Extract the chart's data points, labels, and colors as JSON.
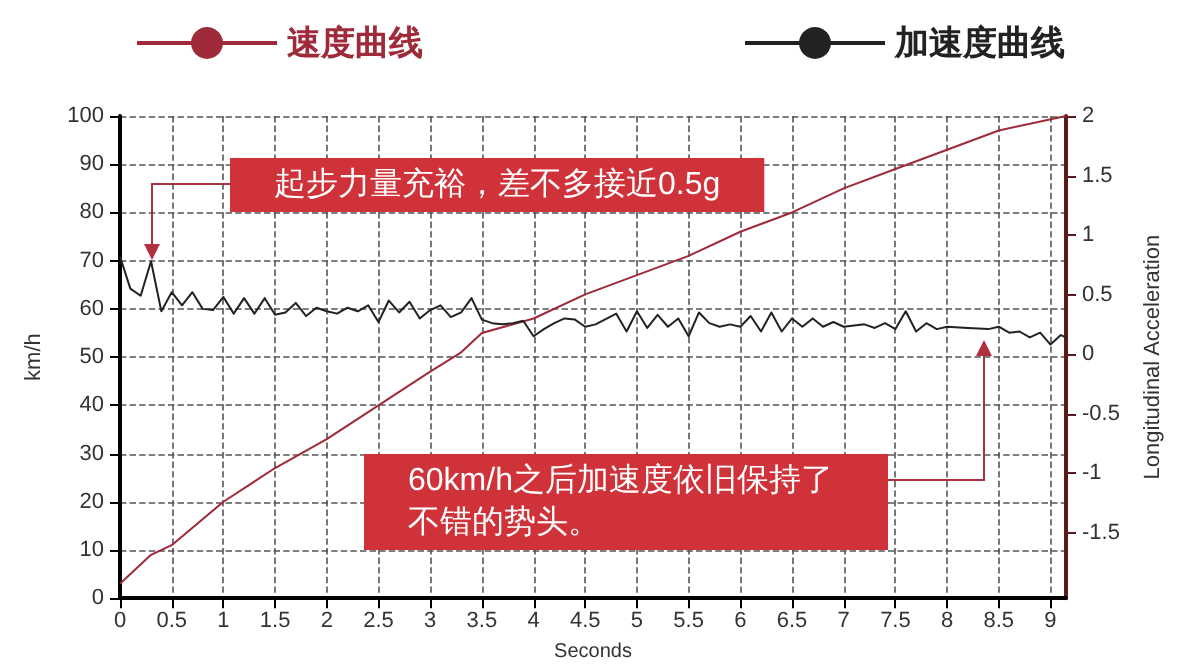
{
  "chart_data": {
    "type": "line",
    "xlabel": "Seconds",
    "ylabel": "km/h",
    "y2label": "Longitudinal Acceleration",
    "xlim": [
      0,
      9.15
    ],
    "xticks": [
      0,
      0.5,
      1,
      1.5,
      2,
      2.5,
      3,
      3.5,
      4,
      4.5,
      5,
      5.5,
      6,
      6.5,
      7,
      7.5,
      8,
      8.5,
      9
    ],
    "ylim": [
      0,
      100
    ],
    "yticks": [
      0,
      10,
      20,
      30,
      40,
      50,
      60,
      70,
      80,
      90,
      100
    ],
    "y2lim": [
      -2.05,
      2
    ],
    "y2ticks": [
      -1.5,
      -1,
      -0.5,
      0,
      0.5,
      1,
      1.5,
      2
    ],
    "grid": true,
    "legend": "top",
    "marker": "none",
    "line_style": "solid",
    "annotations": [
      "起步力量充裕，差不多接近0.5g",
      "60km/h之后加速度依旧保持了不错的势头。"
    ],
    "series": [
      {
        "name": "速度曲线",
        "color": "#9e2a3a",
        "x": [
          0,
          0.3,
          0.5,
          1,
          1.5,
          2,
          2.5,
          3,
          3.3,
          3.5,
          4,
          4.5,
          5,
          5.5,
          6,
          6.5,
          7,
          7.5,
          8,
          8.5,
          9.15
        ],
        "values": [
          3,
          9,
          11,
          20,
          27,
          33,
          40,
          47,
          51,
          55,
          58,
          63,
          67,
          71,
          76,
          80,
          85,
          89,
          93,
          97,
          100
        ]
      },
      {
        "name": "加速度曲线",
        "color": "#222222",
        "axis": "y2",
        "x": [
          0,
          0.1,
          0.2,
          0.3,
          0.4,
          0.5,
          0.6,
          0.7,
          0.8,
          0.9,
          1,
          1.1,
          1.2,
          1.3,
          1.4,
          1.5,
          1.6,
          1.7,
          1.8,
          1.9,
          2,
          2.1,
          2.2,
          2.3,
          2.4,
          2.5,
          2.6,
          2.7,
          2.8,
          2.9,
          3,
          3.1,
          3.2,
          3.3,
          3.4,
          3.5,
          3.6,
          3.7,
          3.8,
          3.9,
          4,
          4.1,
          4.2,
          4.3,
          4.4,
          4.5,
          4.6,
          4.8,
          4.9,
          5,
          5.1,
          5.2,
          5.3,
          5.4,
          5.5,
          5.6,
          5.7,
          5.8,
          5.9,
          6,
          6.1,
          6.2,
          6.3,
          6.4,
          6.5,
          6.6,
          6.7,
          6.8,
          6.9,
          7,
          7.2,
          7.3,
          7.4,
          7.5,
          7.6,
          7.7,
          7.8,
          7.9,
          8,
          8.2,
          8.4,
          8.5,
          8.6,
          8.7,
          8.8,
          8.9,
          9,
          9.1,
          9.15
        ],
        "values": [
          0.82,
          0.55,
          0.49,
          0.78,
          0.36,
          0.52,
          0.41,
          0.52,
          0.38,
          0.37,
          0.48,
          0.34,
          0.47,
          0.34,
          0.47,
          0.33,
          0.35,
          0.43,
          0.32,
          0.39,
          0.36,
          0.34,
          0.39,
          0.36,
          0.41,
          0.27,
          0.45,
          0.35,
          0.44,
          0.3,
          0.37,
          0.41,
          0.31,
          0.35,
          0.47,
          0.29,
          0.26,
          0.25,
          0.26,
          0.28,
          0.15,
          0.21,
          0.26,
          0.3,
          0.29,
          0.23,
          0.25,
          0.34,
          0.19,
          0.36,
          0.22,
          0.33,
          0.23,
          0.3,
          0.15,
          0.35,
          0.26,
          0.23,
          0.25,
          0.23,
          0.32,
          0.19,
          0.35,
          0.19,
          0.3,
          0.23,
          0.3,
          0.23,
          0.27,
          0.23,
          0.25,
          0.22,
          0.26,
          0.21,
          0.36,
          0.19,
          0.26,
          0.21,
          0.23,
          0.22,
          0.21,
          0.23,
          0.18,
          0.19,
          0.14,
          0.18,
          0.08,
          0.16,
          0.14
        ]
      }
    ]
  }
}
